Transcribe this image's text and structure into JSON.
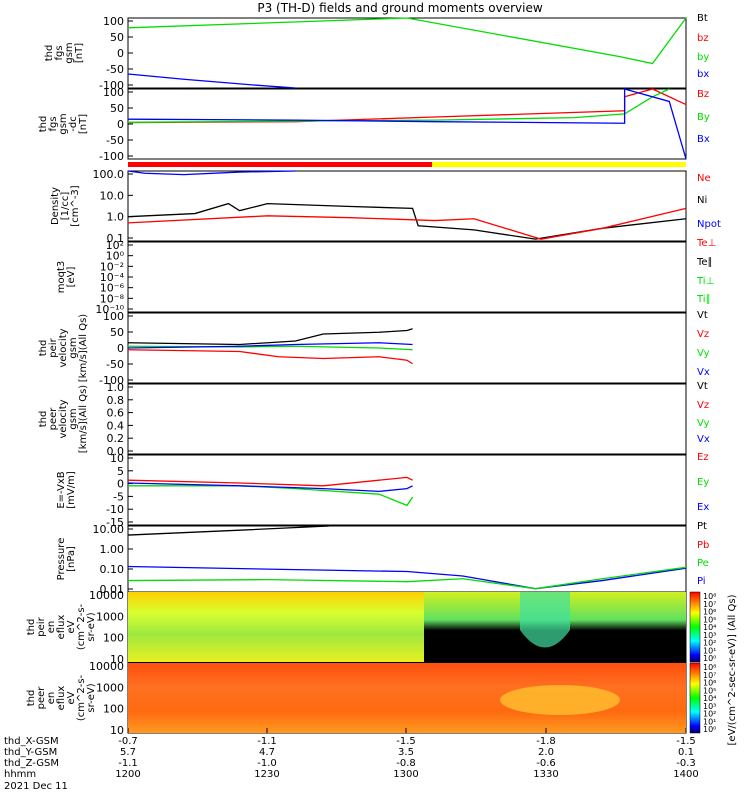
{
  "title": "P3 (TH-D) fields and ground moments overview",
  "colors": {
    "black": "#000000",
    "red": "#ff0000",
    "green": "#00dd00",
    "blue": "#0000ff",
    "yellow": "#ffff00"
  },
  "x_axis": {
    "tick_labels": {
      "thd_X_GSM": [
        "-0.7",
        "-1.1",
        "-1.5",
        "-1.8",
        "-1.5"
      ],
      "thd_Y_GSM": [
        "5.7",
        "4.7",
        "3.5",
        "2.0",
        "0.1"
      ],
      "thd_Z_GSM": [
        "-1.1",
        "-1.0",
        "-0.8",
        "-0.6",
        "-0.3"
      ],
      "hhmm": [
        "1200",
        "1230",
        "1300",
        "1330",
        "1400"
      ]
    },
    "row_labels": [
      "thd_X-GSM",
      "thd_Y-GSM",
      "thd_Z-GSM",
      "hhmm"
    ],
    "date": "2021 Dec 11"
  },
  "spec_colorbar": {
    "ticks": [
      "10⁸",
      "10⁷",
      "10⁶",
      "10⁵",
      "10⁴",
      "10³",
      "10²",
      "10¹",
      "10⁰"
    ],
    "label": "[eV/(cm^2-sec-sr-eV)] (All Qs)"
  },
  "chart_data": [
    {
      "id": "fgs_gsm",
      "type": "line",
      "ylabel": [
        "thd",
        "fgs",
        "gsm",
        "[nT]"
      ],
      "ylim": [
        -100,
        100
      ],
      "ticks": [
        "100",
        "50",
        "0",
        "-50",
        "-100"
      ],
      "legend": [
        {
          "name": "Bt",
          "color": "black"
        },
        {
          "name": "bz",
          "color": "red"
        },
        {
          "name": "by",
          "color": "green"
        },
        {
          "name": "bx",
          "color": "blue"
        }
      ],
      "series": [
        {
          "name": "by",
          "color": "green",
          "x": [
            0,
            0.5,
            0.88,
            0.94,
            1.0
          ],
          "y": [
            72,
            100,
            -10,
            -30,
            100
          ]
        },
        {
          "name": "bx",
          "color": "blue",
          "x": [
            0,
            0.1,
            0.23,
            0.3
          ],
          "y": [
            -60,
            -75,
            -92,
            -100
          ]
        }
      ]
    },
    {
      "id": "fgs_gsm_dc",
      "type": "line",
      "ylabel": [
        "thd",
        "fgs",
        "gsm",
        "-dc",
        "[nT]"
      ],
      "ylim": [
        -125,
        100
      ],
      "ticks": [
        "100",
        "50",
        "0",
        "-50",
        "-100"
      ],
      "legend": [
        {
          "name": "Bz",
          "color": "red"
        },
        {
          "name": "By",
          "color": "green"
        },
        {
          "name": "Bx",
          "color": "blue"
        }
      ],
      "series": [
        {
          "name": "Bz",
          "color": "red",
          "x": [
            0,
            0.3,
            0.55,
            0.89,
            0.89,
            0.94,
            1.0
          ],
          "y": [
            -8,
            -5,
            10,
            30,
            75,
            100,
            50
          ]
        },
        {
          "name": "By",
          "color": "green",
          "x": [
            0,
            0.3,
            0.55,
            0.8,
            0.89,
            0.94,
            0.97
          ],
          "y": [
            -7,
            -3,
            0,
            8,
            20,
            75,
            100
          ]
        },
        {
          "name": "Bx",
          "color": "blue",
          "x": [
            0,
            0.3,
            0.55,
            0.89,
            0.89,
            0.97,
            1.0
          ],
          "y": [
            3,
            0,
            -5,
            -10,
            100,
            60,
            -125
          ]
        }
      ]
    },
    {
      "id": "density",
      "type": "line",
      "log": true,
      "ylabel": [
        "Density",
        "[1/cc]",
        "[cm^-3]"
      ],
      "ylim": [
        0.1,
        100
      ],
      "ticks": [
        "100.0",
        "10.0",
        "1.0",
        "0.1"
      ],
      "legend": [
        {
          "name": "Ne",
          "color": "red"
        },
        {
          "name": "Ni",
          "color": "black"
        },
        {
          "name": "Npot",
          "color": "blue"
        }
      ],
      "series": [
        {
          "name": "Npot",
          "color": "blue",
          "x": [
            0,
            0.03,
            0.1,
            0.2,
            0.3
          ],
          "y": [
            100,
            80,
            70,
            90,
            100
          ]
        },
        {
          "name": "Ni",
          "color": "black",
          "x": [
            0,
            0.12,
            0.18,
            0.2,
            0.25,
            0.4,
            0.51,
            0.52,
            0.62,
            0.73,
            0.85,
            1.0
          ],
          "y": [
            1.1,
            1.5,
            4,
            2,
            4,
            3,
            2.5,
            0.45,
            0.3,
            0.12,
            0.35,
            0.9
          ]
        },
        {
          "name": "Ne",
          "color": "red",
          "x": [
            0,
            0.25,
            0.4,
            0.55,
            0.62,
            0.74,
            0.85,
            1.0
          ],
          "y": [
            0.6,
            1.2,
            1.0,
            0.75,
            0.9,
            0.12,
            0.35,
            2.5
          ]
        }
      ]
    },
    {
      "id": "moqt3",
      "type": "line",
      "ylabel": [
        "moqt3",
        "[eV]"
      ],
      "ticks": [
        "10²",
        "10⁰",
        "10⁻²",
        "10⁻⁴",
        "10⁻⁶",
        "10⁻⁸",
        "10⁻¹⁰"
      ],
      "legend": [
        {
          "name": "Te⊥",
          "color": "red"
        },
        {
          "name": "Te∥",
          "color": "black"
        },
        {
          "name": "Ti⊥",
          "color": "green"
        },
        {
          "name": "Ti∥",
          "color": "green"
        }
      ],
      "series": []
    },
    {
      "id": "peir_velocity",
      "type": "line",
      "ylabel": [
        "thd",
        "peir",
        "velocity",
        "gsm",
        "[km/s](All Qs)"
      ],
      "ylim": [
        -100,
        100
      ],
      "ticks": [
        "100",
        "50",
        "0",
        "-50",
        "-100"
      ],
      "legend": [
        {
          "name": "Vt",
          "color": "black"
        },
        {
          "name": "Vz",
          "color": "red"
        },
        {
          "name": "Vy",
          "color": "green"
        },
        {
          "name": "Vx",
          "color": "blue"
        }
      ],
      "series": [
        {
          "name": "Vt",
          "color": "black",
          "x": [
            0,
            0.2,
            0.3,
            0.35,
            0.45,
            0.5,
            0.51
          ],
          "y": [
            15,
            10,
            20,
            40,
            45,
            50,
            55
          ]
        },
        {
          "name": "Vz",
          "color": "red",
          "x": [
            0,
            0.2,
            0.27,
            0.35,
            0.45,
            0.5,
            0.51
          ],
          "y": [
            -5,
            -10,
            -25,
            -30,
            -25,
            -35,
            -45
          ]
        },
        {
          "name": "Vy",
          "color": "green",
          "x": [
            0,
            0.2,
            0.3,
            0.45,
            0.51
          ],
          "y": [
            5,
            3,
            5,
            0,
            -5
          ]
        },
        {
          "name": "Vx",
          "color": "blue",
          "x": [
            0,
            0.2,
            0.3,
            0.45,
            0.51
          ],
          "y": [
            0,
            5,
            10,
            15,
            10
          ]
        }
      ]
    },
    {
      "id": "peer_velocity",
      "type": "line",
      "ylabel": [
        "thd",
        "peer",
        "velocity",
        "gsm",
        "[km/s](All Qs)"
      ],
      "ylim": [
        0,
        1
      ],
      "ticks": [
        "1.0",
        "0.8",
        "0.6",
        "0.4",
        "0.2",
        "0.0"
      ],
      "legend": [
        {
          "name": "Vt",
          "color": "black"
        },
        {
          "name": "Vz",
          "color": "red"
        },
        {
          "name": "Vy",
          "color": "green"
        },
        {
          "name": "Vx",
          "color": "blue"
        }
      ],
      "series": []
    },
    {
      "id": "e_vxb",
      "type": "line",
      "ylabel": [
        "E=-VxB",
        "[mV/m]"
      ],
      "ylim": [
        -15,
        10
      ],
      "ticks": [
        "10",
        "5",
        "0",
        "-5",
        "-10",
        "-15"
      ],
      "legend": [
        {
          "name": "Ez",
          "color": "red"
        },
        {
          "name": "Ey",
          "color": "green"
        },
        {
          "name": "Ex",
          "color": "blue"
        }
      ],
      "series": [
        {
          "name": "Ez",
          "color": "red",
          "x": [
            0,
            0.2,
            0.35,
            0.45,
            0.5,
            0.51
          ],
          "y": [
            1,
            0,
            -1,
            1,
            2,
            1
          ]
        },
        {
          "name": "Ey",
          "color": "green",
          "x": [
            0,
            0.2,
            0.3,
            0.45,
            0.5,
            0.51
          ],
          "y": [
            -1,
            -1,
            -2,
            -4,
            -8,
            -5
          ]
        },
        {
          "name": "Ex",
          "color": "blue",
          "x": [
            0,
            0.2,
            0.35,
            0.45,
            0.5,
            0.51
          ],
          "y": [
            0,
            -1,
            -2,
            -3,
            -2,
            -1
          ]
        }
      ]
    },
    {
      "id": "pressure",
      "type": "line",
      "log": true,
      "ylabel": [
        "Pressure",
        "[nPa]"
      ],
      "ylim": [
        0.01,
        30
      ],
      "ticks": [
        "10.00",
        "1.00",
        "0.10",
        "0.01"
      ],
      "legend": [
        {
          "name": "Pt",
          "color": "black"
        },
        {
          "name": "Pb",
          "color": "red"
        },
        {
          "name": "Pe",
          "color": "green"
        },
        {
          "name": "Pi",
          "color": "blue"
        }
      ],
      "series": [
        {
          "name": "Pt",
          "color": "black",
          "x": [
            0,
            0.2,
            0.36
          ],
          "y": [
            10,
            18,
            30
          ]
        },
        {
          "name": "Pi",
          "color": "blue",
          "x": [
            0,
            0.25,
            0.5,
            0.6,
            0.73,
            0.85,
            1.0
          ],
          "y": [
            0.22,
            0.16,
            0.12,
            0.07,
            0.015,
            0.04,
            0.18
          ]
        },
        {
          "name": "Pe",
          "color": "green",
          "x": [
            0,
            0.25,
            0.5,
            0.6,
            0.73,
            0.85,
            1.0
          ],
          "y": [
            0.04,
            0.045,
            0.035,
            0.05,
            0.015,
            0.05,
            0.2
          ]
        }
      ]
    },
    {
      "id": "peir_en_eflux",
      "type": "heatmap",
      "ylabel": [
        "thd",
        "peir",
        "en",
        "eflux",
        "eV",
        "(cm^2-s-",
        "sr-eV)"
      ],
      "ticks": [
        "10000",
        "1000",
        "100",
        "10"
      ]
    },
    {
      "id": "peer_en_eflux",
      "type": "heatmap",
      "ylabel": [
        "thd",
        "peer",
        "en",
        "eflux",
        "eV",
        "(cm^2-s-",
        "sr-eV)"
      ],
      "ticks": [
        "10000",
        "1000",
        "100",
        "10"
      ]
    }
  ]
}
